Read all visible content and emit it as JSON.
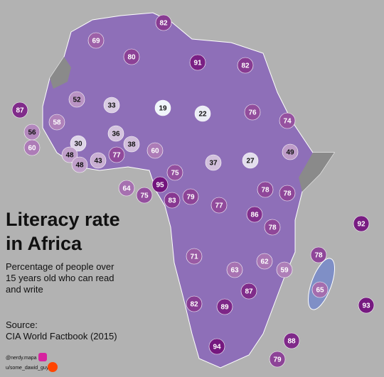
{
  "title": [
    "Literacy rate",
    "in Africa"
  ],
  "subtitle": [
    "Percentage of people over",
    "15 years old who can read",
    "and write"
  ],
  "source": [
    "Source:",
    "CIA World Factbook (2015)"
  ],
  "credits": [
    "@nerdy.mapa",
    "u/some_dawid_guy"
  ],
  "labels": [
    82,
    69,
    80,
    91,
    82,
    52,
    33,
    19,
    22,
    76,
    87,
    58,
    56,
    60,
    36,
    38,
    74,
    30,
    48,
    48,
    43,
    77,
    60,
    64,
    37,
    27,
    49,
    75,
    95,
    75,
    79,
    83,
    78,
    78,
    77,
    86,
    92,
    78,
    71,
    78,
    63,
    62,
    59,
    65,
    87,
    82,
    89,
    93,
    88,
    94,
    79
  ]
}
